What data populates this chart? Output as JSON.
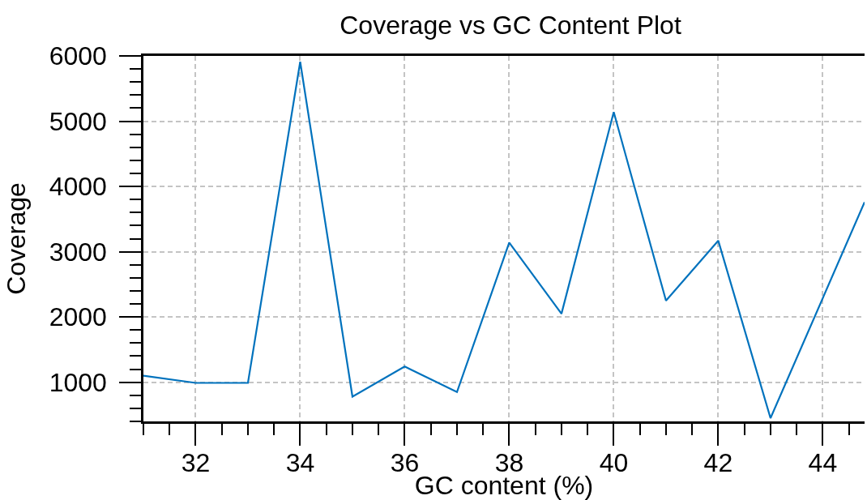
{
  "chart_data": {
    "type": "line",
    "title": "Coverage vs GC Content Plot",
    "xlabel": "GC content (%)",
    "ylabel": "Coverage",
    "x": [
      31,
      32,
      33,
      34,
      35,
      36,
      37,
      38,
      39,
      40,
      41,
      42,
      43,
      44.8
    ],
    "series": [
      {
        "color": "#0072bd",
        "values": [
          1100,
          990,
          990,
          5910,
          780,
          1240,
          850,
          3140,
          2050,
          5140,
          2250,
          3170,
          450,
          3760
        ]
      }
    ],
    "xlim": [
      31,
      44.8
    ],
    "xticks": [
      {
        "value": 31,
        "label": null
      },
      {
        "value": 31.5,
        "label": null
      },
      32,
      {
        "value": 32.5,
        "label": null
      },
      {
        "value": 33,
        "label": null
      },
      {
        "value": 33.5,
        "label": null
      },
      34,
      {
        "value": 34.5,
        "label": null
      },
      {
        "value": 35,
        "label": null
      },
      {
        "value": 35.5,
        "label": null
      },
      36,
      {
        "value": 36.5,
        "label": null
      },
      {
        "value": 37,
        "label": null
      },
      {
        "value": 37.5,
        "label": null
      },
      38,
      {
        "value": 38.5,
        "label": null
      },
      {
        "value": 39,
        "label": null
      },
      {
        "value": 39.5,
        "label": null
      },
      40,
      {
        "value": 40.5,
        "label": null
      },
      {
        "value": 41,
        "label": null
      },
      {
        "value": 41.5,
        "label": null
      },
      42,
      {
        "value": 42.5,
        "label": null
      },
      {
        "value": 43,
        "label": null
      },
      {
        "value": 43.5,
        "label": null
      },
      44,
      {
        "value": 44.5,
        "label": null
      }
    ],
    "ylim": [
      400,
      6000
    ],
    "yticks": [
      {
        "value": 400,
        "label": null
      },
      {
        "value": 600,
        "label": null
      },
      {
        "value": 800,
        "label": null
      },
      1000,
      {
        "value": 1200,
        "label": null
      },
      {
        "value": 1400,
        "label": null
      },
      {
        "value": 1600,
        "label": null
      },
      {
        "value": 1800,
        "label": null
      },
      2000,
      {
        "value": 2200,
        "label": null
      },
      {
        "value": 2400,
        "label": null
      },
      {
        "value": 2600,
        "label": null
      },
      {
        "value": 2800,
        "label": null
      },
      3000,
      {
        "value": 3200,
        "label": null
      },
      {
        "value": 3400,
        "label": null
      },
      {
        "value": 3600,
        "label": null
      },
      {
        "value": 3800,
        "label": null
      },
      4000,
      {
        "value": 4200,
        "label": null
      },
      {
        "value": 4400,
        "label": null
      },
      {
        "value": 4600,
        "label": null
      },
      {
        "value": 4800,
        "label": null
      },
      5000,
      {
        "value": 5200,
        "label": null
      },
      {
        "value": 5400,
        "label": null
      },
      {
        "value": 5600,
        "label": null
      },
      {
        "value": 5800,
        "label": null
      },
      6000
    ],
    "grid": true
  }
}
